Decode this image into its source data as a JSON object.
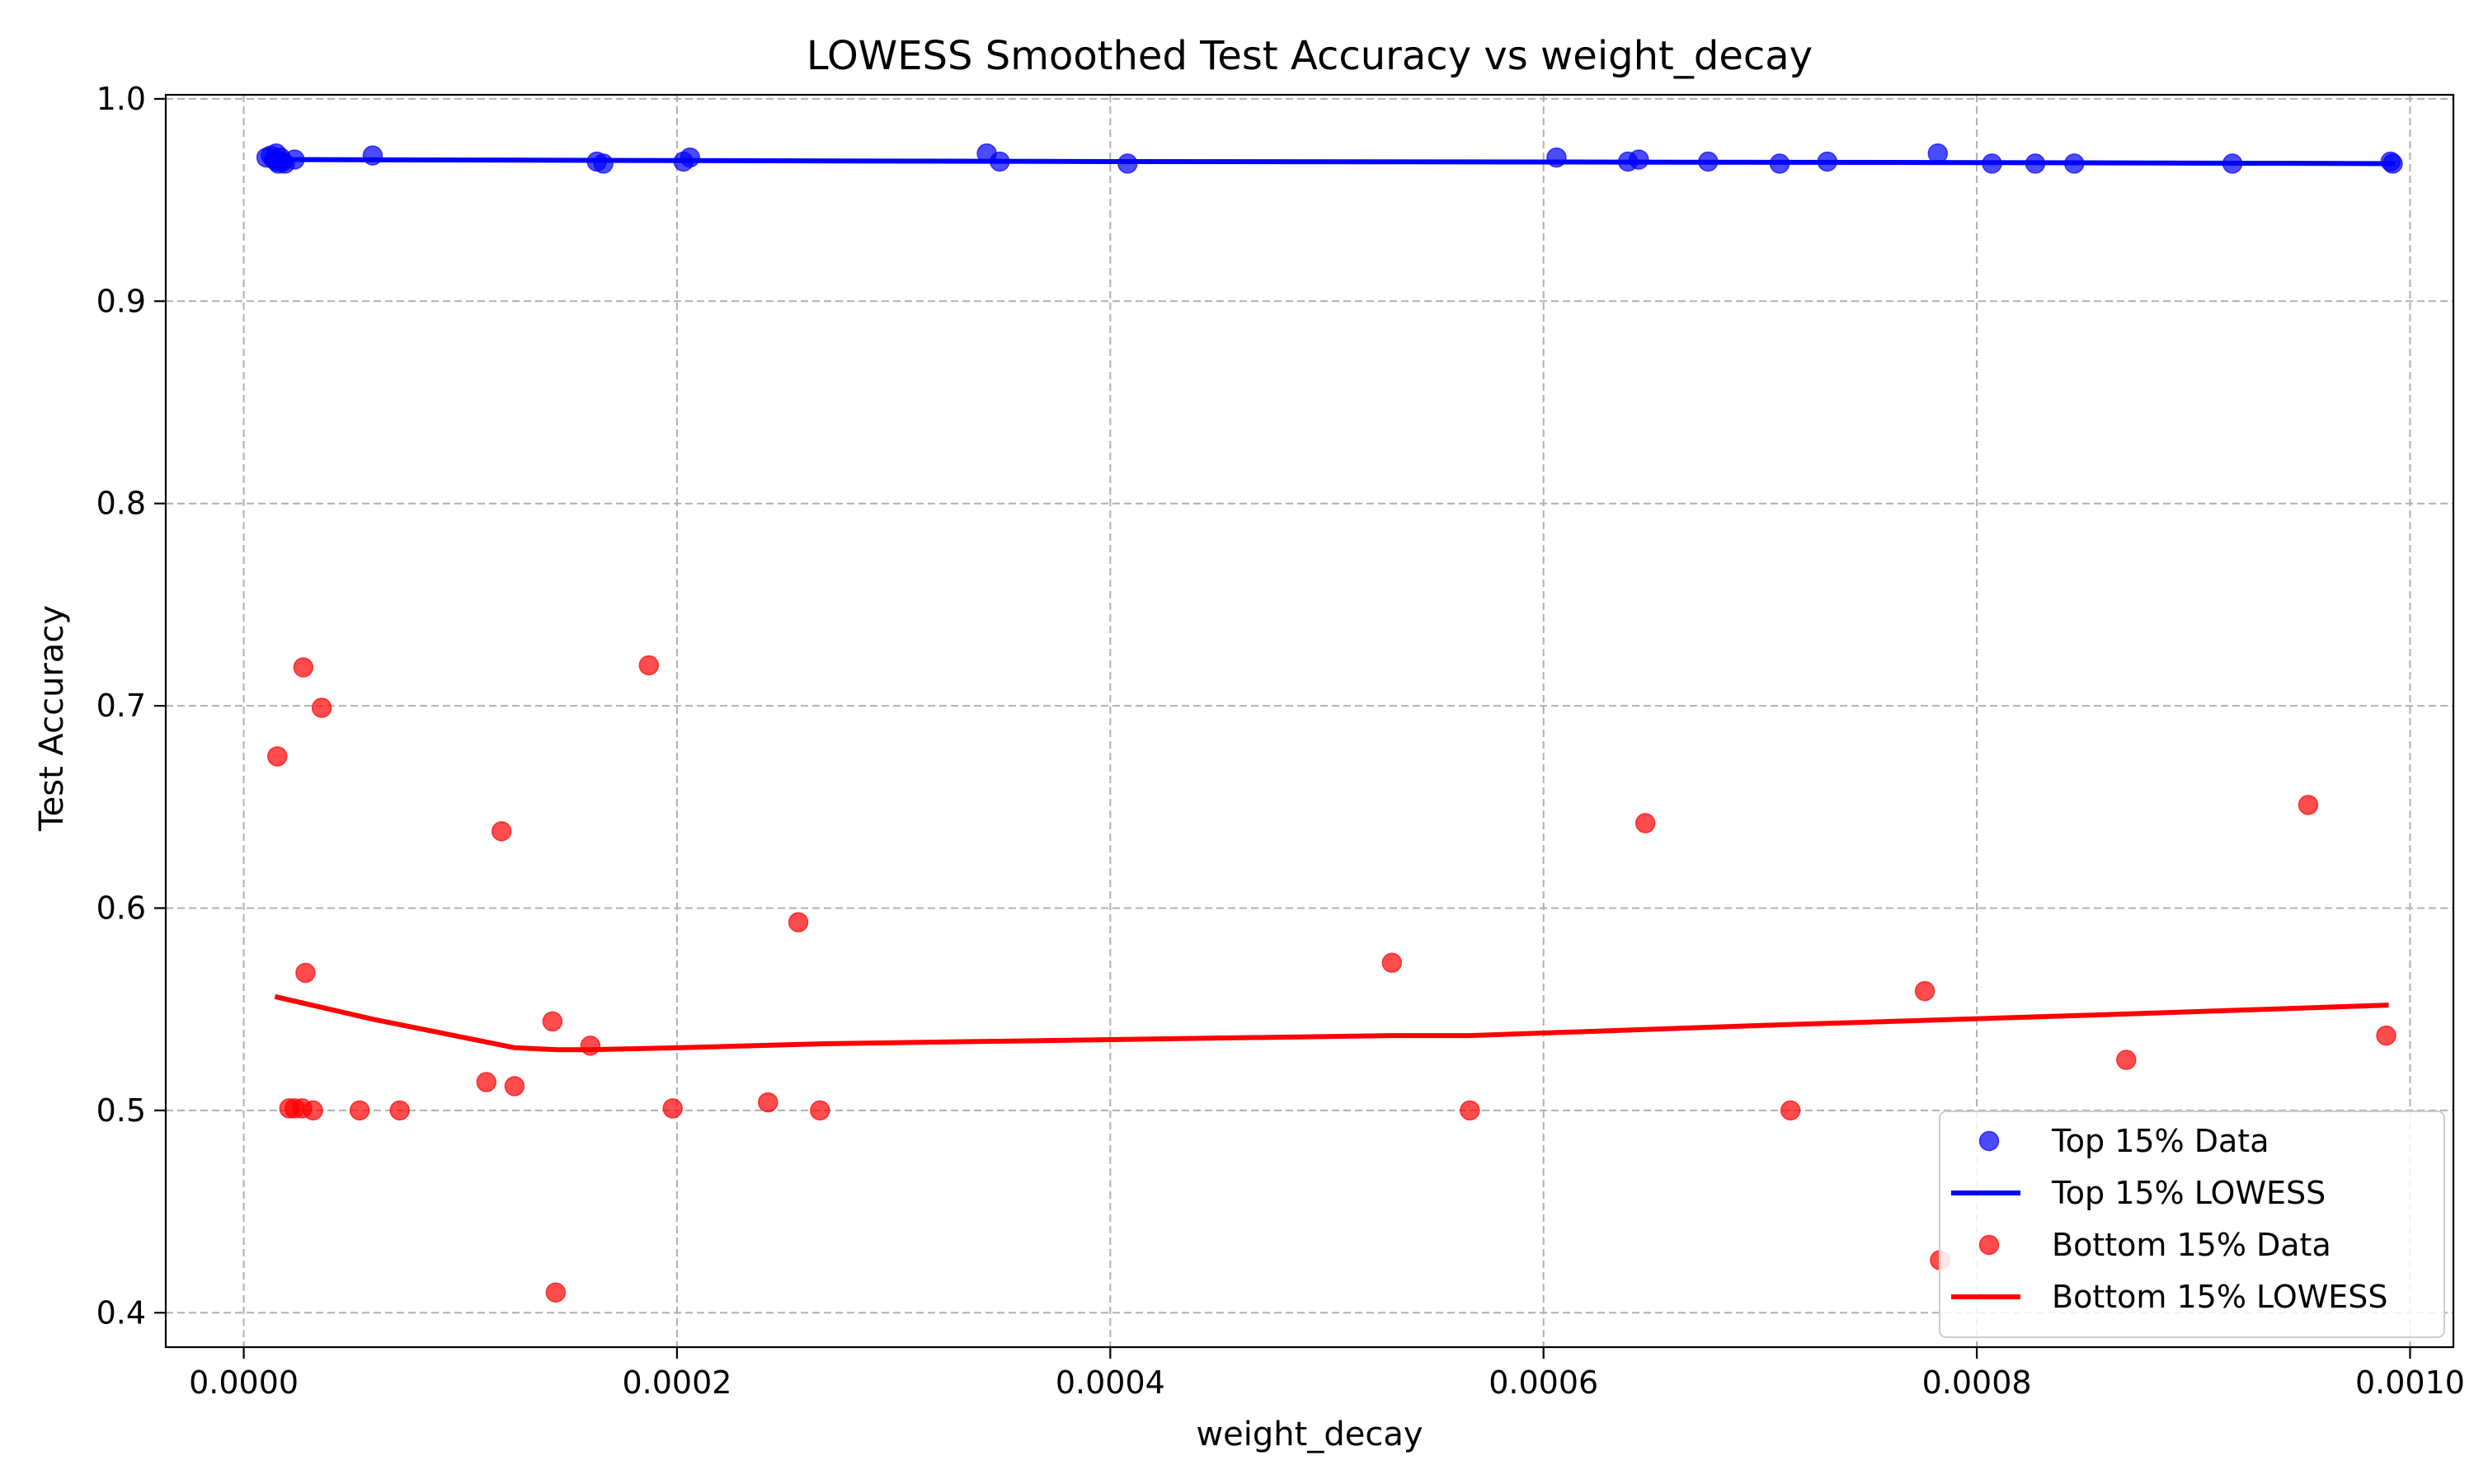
{
  "chart_data": {
    "type": "scatter",
    "title": "LOWESS Smoothed Test Accuracy vs weight_decay",
    "xlabel": "weight_decay",
    "ylabel": "Test Accuracy",
    "xlim": [
      -3.6e-05,
      0.00102
    ],
    "ylim": [
      0.383,
      1.002
    ],
    "xticks": [
      0.0,
      0.0002,
      0.0004,
      0.0006,
      0.0008,
      0.001
    ],
    "xtick_labels": [
      "0.0000",
      "0.0002",
      "0.0004",
      "0.0006",
      "0.0008",
      "0.0010"
    ],
    "yticks": [
      0.4,
      0.5,
      0.6,
      0.7,
      0.8,
      0.9,
      1.0
    ],
    "ytick_labels": [
      "0.4",
      "0.5",
      "0.6",
      "0.7",
      "0.8",
      "0.9",
      "1.0"
    ],
    "grid": true,
    "legend_position": "lower-right",
    "series": [
      {
        "name": "Top 15% Data",
        "kind": "scatter",
        "color": "#0000ff",
        "points": [
          [
            1.05e-05,
            0.971
          ],
          [
            1.25e-05,
            0.972
          ],
          [
            1.4e-05,
            0.97
          ],
          [
            1.5e-05,
            0.973
          ],
          [
            1.55e-05,
            0.969
          ],
          [
            1.6e-05,
            0.968
          ],
          [
            1.7e-05,
            0.971
          ],
          [
            1.8e-05,
            0.969
          ],
          [
            1.9e-05,
            0.968
          ],
          [
            2.35e-05,
            0.97
          ],
          [
            5.95e-05,
            0.972
          ],
          [
            0.000163,
            0.969
          ],
          [
            0.000166,
            0.968
          ],
          [
            0.000203,
            0.969
          ],
          [
            0.000206,
            0.971
          ],
          [
            0.000343,
            0.973
          ],
          [
            0.000349,
            0.969
          ],
          [
            0.000408,
            0.968
          ],
          [
            0.000606,
            0.971
          ],
          [
            0.000639,
            0.969
          ],
          [
            0.000644,
            0.97
          ],
          [
            0.000676,
            0.969
          ],
          [
            0.000709,
            0.968
          ],
          [
            0.000731,
            0.969
          ],
          [
            0.000782,
            0.973
          ],
          [
            0.000807,
            0.968
          ],
          [
            0.000827,
            0.968
          ],
          [
            0.000845,
            0.968
          ],
          [
            0.000918,
            0.968
          ],
          [
            0.000991,
            0.969
          ],
          [
            0.000992,
            0.968
          ]
        ]
      },
      {
        "name": "Top 15% LOWESS",
        "kind": "line",
        "color": "#0000ff",
        "x": [
          1.05e-05,
          0.0002,
          0.0004,
          0.0006,
          0.0008,
          0.000992
        ],
        "y": [
          0.97,
          0.9695,
          0.969,
          0.9688,
          0.9685,
          0.968
        ]
      },
      {
        "name": "Bottom 15% Data",
        "kind": "scatter",
        "color": "#ff0000",
        "points": [
          [
            1.55e-05,
            0.675
          ],
          [
            2.1e-05,
            0.501
          ],
          [
            2.35e-05,
            0.501
          ],
          [
            2.7e-05,
            0.501
          ],
          [
            2.75e-05,
            0.719
          ],
          [
            2.85e-05,
            0.568
          ],
          [
            3.2e-05,
            0.5
          ],
          [
            3.6e-05,
            0.699
          ],
          [
            5.35e-05,
            0.5
          ],
          [
            7.2e-05,
            0.5
          ],
          [
            0.000112,
            0.514
          ],
          [
            0.000119,
            0.638
          ],
          [
            0.000125,
            0.512
          ],
          [
            0.0001425,
            0.544
          ],
          [
            0.000144,
            0.41
          ],
          [
            0.00016,
            0.532
          ],
          [
            0.000187,
            0.72
          ],
          [
            0.000198,
            0.501
          ],
          [
            0.000242,
            0.504
          ],
          [
            0.000256,
            0.593
          ],
          [
            0.000266,
            0.5
          ],
          [
            0.00053,
            0.573
          ],
          [
            0.000566,
            0.5
          ],
          [
            0.000647,
            0.642
          ],
          [
            0.000714,
            0.5
          ],
          [
            0.000776,
            0.559
          ],
          [
            0.000783,
            0.426
          ],
          [
            0.000869,
            0.525
          ],
          [
            0.000953,
            0.651
          ],
          [
            0.000989,
            0.537
          ]
        ]
      },
      {
        "name": "Bottom 15% LOWESS",
        "kind": "line",
        "color": "#ff0000",
        "x": [
          1.55e-05,
          6e-05,
          0.000125,
          0.000145,
          0.00016,
          0.0002,
          0.00027,
          0.0004,
          0.00053,
          0.000566,
          0.0007,
          0.00085,
          0.000989
        ],
        "y": [
          0.556,
          0.545,
          0.531,
          0.53,
          0.53,
          0.531,
          0.533,
          0.535,
          0.537,
          0.537,
          0.542,
          0.547,
          0.552
        ]
      }
    ]
  }
}
